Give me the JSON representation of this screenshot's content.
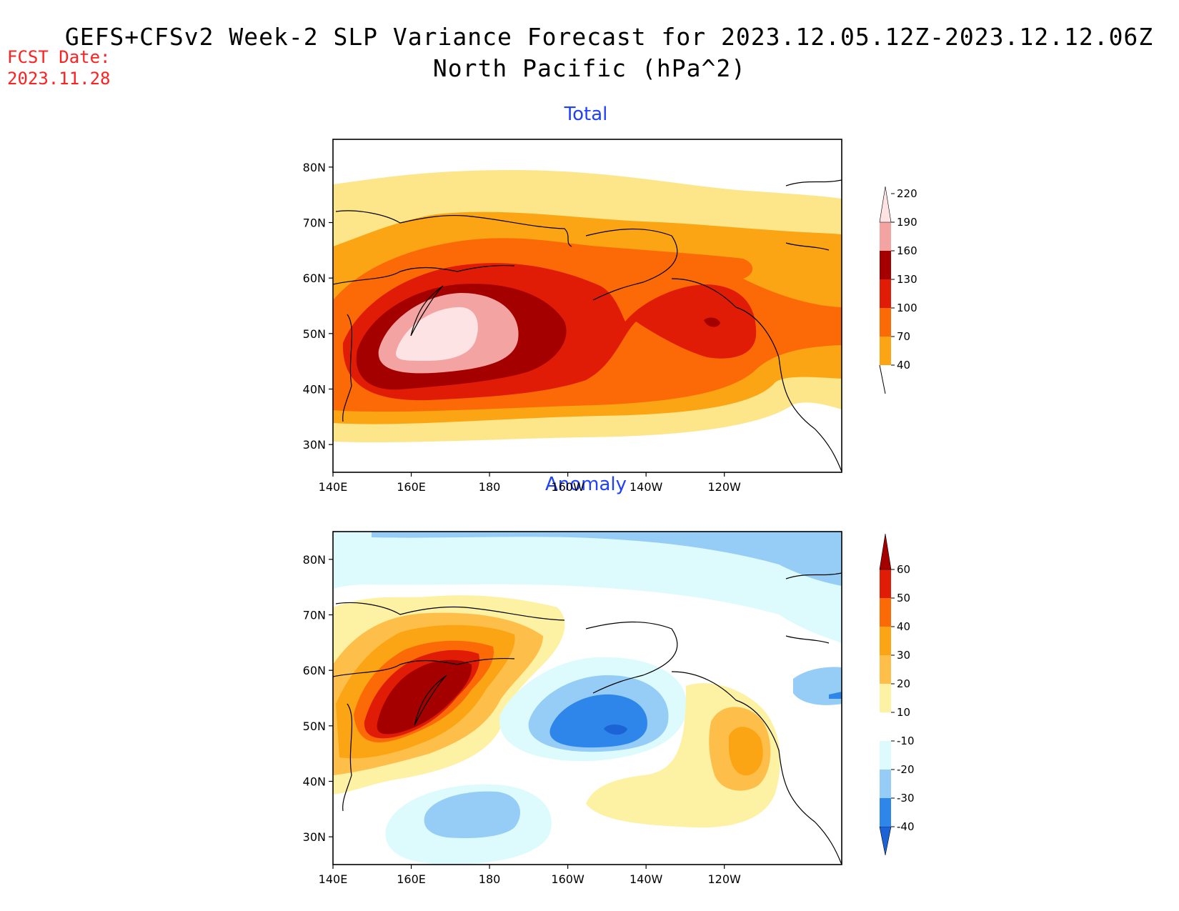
{
  "title": {
    "line1": "GEFS+CFSv2 Week-2 SLP Variance Forecast for 2023.12.05.12Z-2023.12.12.06Z",
    "line2": "North Pacific (hPa^2)"
  },
  "forecast_date": {
    "label": "FCST Date:",
    "value": "2023.11.28"
  },
  "axes": {
    "lat_ticks": [
      "80N",
      "70N",
      "60N",
      "50N",
      "40N",
      "30N"
    ],
    "lon_ticks": [
      "140E",
      "160E",
      "180",
      "160W",
      "140W",
      "120W"
    ]
  },
  "panels": [
    {
      "title": "Total",
      "colorbar": {
        "levels": [
          "40",
          "70",
          "100",
          "130",
          "160",
          "190",
          "220"
        ],
        "colors": [
          "#fde68a",
          "#fca514",
          "#fb6a06",
          "#e01c06",
          "#a50000",
          "#f4a3a3",
          "#fde3e3"
        ]
      }
    },
    {
      "title": "Anomaly",
      "colorbar": {
        "levels": [
          "-40",
          "-30",
          "-20",
          "-10",
          "10",
          "20",
          "30",
          "40",
          "50",
          "60"
        ],
        "colors": [
          "#1c64d6",
          "#2e86ea",
          "#95cdf6",
          "#ddfbfd",
          "#ffffff",
          "#fdf1a4",
          "#fdbe4a",
          "#fca514",
          "#fb6a06",
          "#e01c06",
          "#a50000"
        ]
      }
    }
  ]
}
